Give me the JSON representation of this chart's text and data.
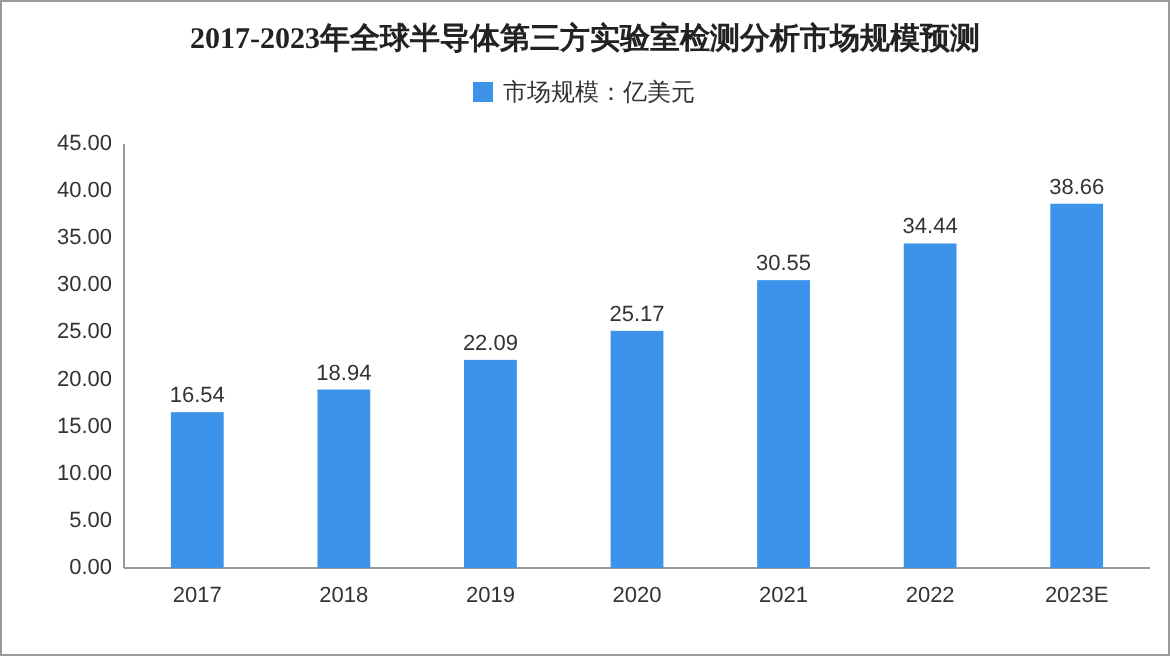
{
  "chart_data": {
    "type": "bar",
    "title": "2017-2023年全球半导体第三方实验室检测分析市场规模预测",
    "categories": [
      "2017",
      "2018",
      "2019",
      "2020",
      "2021",
      "2022",
      "2023E"
    ],
    "series": [
      {
        "name": "市场规模：亿美元",
        "color": "#3d92ea",
        "values": [
          16.54,
          18.94,
          22.09,
          25.17,
          30.55,
          34.44,
          38.66
        ]
      }
    ],
    "ylim": [
      0,
      45
    ],
    "yticks": [
      {
        "value": 0,
        "label": "0.00"
      },
      {
        "value": 5,
        "label": "5.00"
      },
      {
        "value": 10,
        "label": "10.00"
      },
      {
        "value": 15,
        "label": "15.00"
      },
      {
        "value": 20,
        "label": "20.00"
      },
      {
        "value": 25,
        "label": "25.00"
      },
      {
        "value": 30,
        "label": "30.00"
      },
      {
        "value": 35,
        "label": "35.00"
      },
      {
        "value": 40,
        "label": "40.00"
      },
      {
        "value": 45,
        "label": "45.00"
      }
    ],
    "data_labels": true,
    "legend": "top"
  }
}
